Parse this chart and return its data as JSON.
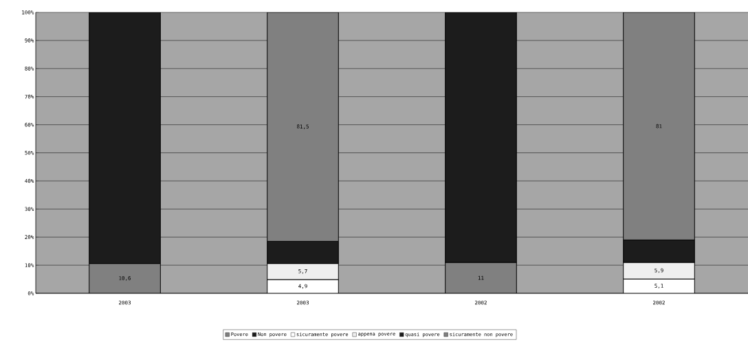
{
  "chart_data": {
    "type": "bar",
    "stacked": true,
    "categories": [
      "2003",
      "2003",
      "2002",
      "2002"
    ],
    "series": [
      {
        "name": "Povere",
        "color": "#808080",
        "values": [
          10.6,
          null,
          11,
          null
        ],
        "value_labels": [
          "10,6",
          null,
          "11",
          null
        ]
      },
      {
        "name": "Non povere",
        "color": "#1c1c1c",
        "values": [
          89.4,
          null,
          89,
          null
        ]
      },
      {
        "name": "sicuramente povere",
        "color": "#ffffff",
        "values": [
          null,
          4.9,
          null,
          5.1
        ],
        "value_labels": [
          null,
          "4,9",
          null,
          "5,1"
        ]
      },
      {
        "name": "appena povere",
        "color": "#efefef",
        "values": [
          null,
          5.7,
          null,
          5.9
        ],
        "value_labels": [
          null,
          "5,7",
          null,
          "5,9"
        ]
      },
      {
        "name": "quasi povere",
        "color": "#1c1c1c",
        "values": [
          null,
          7.9,
          null,
          8
        ]
      },
      {
        "name": "sicuramente non povere",
        "color": "#808080",
        "values": [
          null,
          81.5,
          null,
          81
        ],
        "value_labels": [
          null,
          "81,5",
          null,
          "81"
        ]
      }
    ],
    "ylim": [
      0,
      100
    ],
    "yticks": [
      {
        "value": 0,
        "label": "0%"
      },
      {
        "value": 10,
        "label": "10%"
      },
      {
        "value": 20,
        "label": "20%"
      },
      {
        "value": 30,
        "label": "30%"
      },
      {
        "value": 40,
        "label": "40%"
      },
      {
        "value": 50,
        "label": "50%"
      },
      {
        "value": 60,
        "label": "60%"
      },
      {
        "value": 70,
        "label": "70%"
      },
      {
        "value": 80,
        "label": "80%"
      },
      {
        "value": 90,
        "label": "90%"
      },
      {
        "value": 100,
        "label": "100%"
      }
    ],
    "grid": "y",
    "legend": "bottom"
  }
}
